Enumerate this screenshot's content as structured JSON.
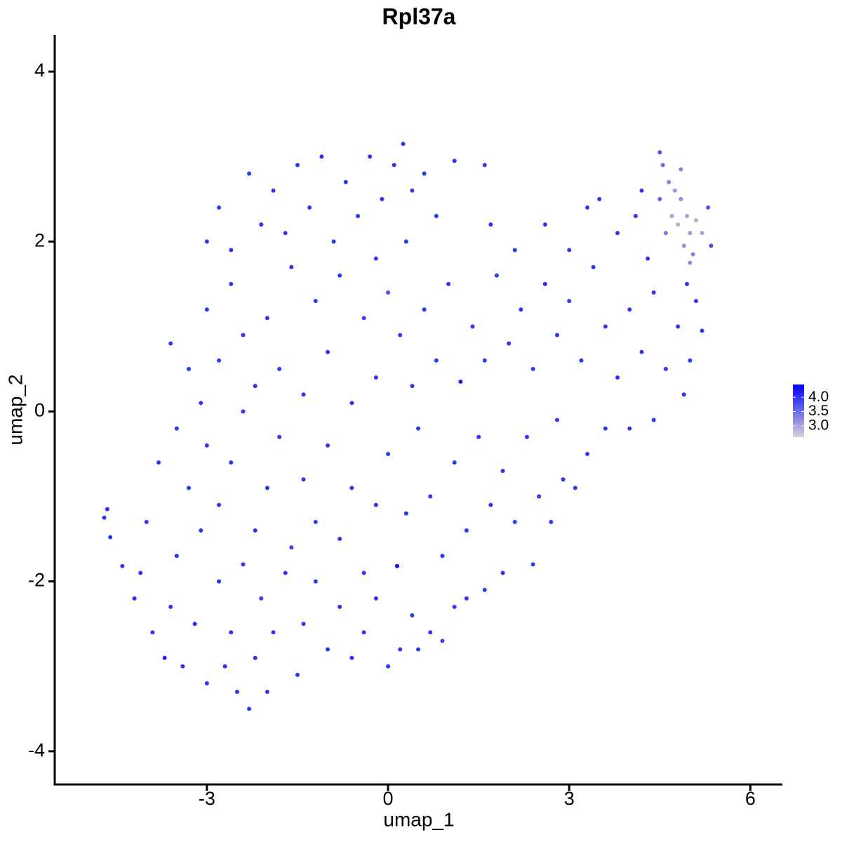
{
  "chart_data": {
    "type": "scatter",
    "title": "Rpl37a",
    "x_label": "umap_1",
    "y_label": "umap_2",
    "xlim": [
      -5.52,
      6.53
    ],
    "ylim": [
      -4.39,
      4.43
    ],
    "xticks": [
      -3,
      0,
      3,
      6
    ],
    "yticks": [
      -4,
      -2,
      0,
      2,
      4
    ],
    "color_low": "#d3d3d3",
    "color_high": "#0000ff",
    "color_lim": [
      2.6,
      4.45
    ],
    "color_ticks": [
      {
        "value": 3,
        "label": "3.0"
      },
      {
        "value": 3.5,
        "label": "3.5"
      },
      {
        "value": 4,
        "label": "4.0"
      }
    ],
    "x": [
      -4.7,
      -4.65,
      -4.6,
      -4.4,
      -4.2,
      -4.1,
      -3.9,
      -3.7,
      -3.6,
      -3.5,
      -3.4,
      -3.2,
      -3.1,
      -3.0,
      -2.8,
      -2.7,
      -2.6,
      -2.5,
      -2.4,
      -2.3,
      -2.2,
      -2.1,
      -2.0,
      -1.9,
      -1.7,
      -1.5,
      -1.4,
      -1.2,
      -1.0,
      -0.8,
      -0.6,
      -0.4,
      -0.2,
      0.0,
      0.2,
      0.4,
      0.5,
      0.7,
      0.9,
      1.1,
      1.3,
      1.6,
      1.9,
      2.4,
      -4.0,
      -3.8,
      -3.5,
      -3.3,
      -3.1,
      -3.0,
      -2.8,
      -2.6,
      -2.4,
      -2.2,
      -2.0,
      -1.8,
      -1.6,
      -1.4,
      -1.2,
      -1.0,
      -0.8,
      -0.6,
      -0.4,
      -0.2,
      0.0,
      0.15,
      0.3,
      0.5,
      0.7,
      0.9,
      1.1,
      1.3,
      1.5,
      1.7,
      1.9,
      2.1,
      2.3,
      2.5,
      2.7,
      2.9,
      3.1,
      3.3,
      3.6,
      4.0,
      4.4,
      2.8,
      -3.6,
      -3.3,
      -3.0,
      -2.8,
      -2.6,
      -2.4,
      -2.2,
      -2.0,
      -1.8,
      -1.6,
      -1.4,
      -1.2,
      -1.0,
      -0.8,
      -0.6,
      -0.4,
      -0.2,
      0.0,
      0.2,
      0.4,
      0.6,
      0.8,
      1.0,
      1.2,
      1.4,
      1.6,
      1.8,
      2.0,
      2.2,
      2.4,
      2.6,
      2.8,
      3.0,
      3.2,
      3.4,
      3.6,
      3.8,
      4.0,
      4.2,
      4.4,
      4.6,
      4.8,
      5.0,
      5.2,
      4.9,
      -3.0,
      -2.8,
      -2.6,
      -2.3,
      -2.1,
      -1.9,
      -1.7,
      -1.5,
      -1.3,
      -1.1,
      -0.9,
      -0.7,
      -0.5,
      -0.3,
      -0.1,
      0.1,
      0.25,
      0.4,
      0.6,
      0.8,
      1.1,
      1.6,
      0.3,
      -0.2,
      1.7,
      2.1,
      2.6,
      3.0,
      3.3,
      3.5,
      3.8,
      4.1,
      4.3,
      4.2,
      4.5,
      4.5,
      4.55,
      4.65,
      4.75,
      4.85,
      4.7,
      4.8,
      4.95,
      5.0,
      4.9,
      5.1,
      5.05,
      4.6,
      4.85,
      5.2,
      5.0,
      5.3,
      5.35,
      4.95,
      5.1
    ],
    "y": [
      -1.25,
      -1.15,
      -1.48,
      -1.82,
      -2.2,
      -1.9,
      -2.6,
      -2.9,
      -2.3,
      -1.7,
      -3.0,
      -2.5,
      -1.4,
      -3.2,
      -2.0,
      -3.0,
      -2.6,
      -3.3,
      -1.8,
      -3.5,
      -2.9,
      -2.2,
      -3.3,
      -2.6,
      -1.9,
      -3.1,
      -2.5,
      -2.0,
      -2.8,
      -2.3,
      -2.9,
      -2.6,
      -2.2,
      -3.0,
      -2.8,
      -2.4,
      -2.8,
      -2.6,
      -2.7,
      -2.3,
      -2.2,
      -2.1,
      -1.9,
      -1.8,
      -1.3,
      -0.6,
      -0.2,
      -0.9,
      0.1,
      -0.4,
      -1.1,
      -0.6,
      0.0,
      -1.4,
      -0.9,
      -0.3,
      -1.6,
      -0.8,
      -1.3,
      -0.4,
      -1.5,
      -0.9,
      -1.9,
      -1.1,
      -0.5,
      -1.82,
      -1.2,
      -0.2,
      -1.0,
      -1.7,
      -0.6,
      -1.4,
      -0.3,
      -1.1,
      -0.7,
      -1.3,
      -0.3,
      -1.0,
      -1.3,
      -0.8,
      -0.9,
      -0.5,
      -0.2,
      -0.2,
      -0.1,
      -0.1,
      0.8,
      0.5,
      1.2,
      0.6,
      1.5,
      0.9,
      0.3,
      1.1,
      0.5,
      1.7,
      0.2,
      1.3,
      0.7,
      1.6,
      0.1,
      1.1,
      0.4,
      1.4,
      0.9,
      0.3,
      1.2,
      0.6,
      1.5,
      0.35,
      1.0,
      0.6,
      1.6,
      0.8,
      1.2,
      0.5,
      1.5,
      0.9,
      1.3,
      0.6,
      1.7,
      1.0,
      0.4,
      1.2,
      0.7,
      1.4,
      0.5,
      1.0,
      0.6,
      0.95,
      0.2,
      2.0,
      2.4,
      1.9,
      2.8,
      2.2,
      2.6,
      2.1,
      2.9,
      2.4,
      3.0,
      2.0,
      2.7,
      2.3,
      3.0,
      2.5,
      2.9,
      3.15,
      2.6,
      2.8,
      2.3,
      2.95,
      2.9,
      2.0,
      1.8,
      2.2,
      1.9,
      2.2,
      1.9,
      2.4,
      2.5,
      2.1,
      2.3,
      1.8,
      2.6,
      3.05,
      2.5,
      2.9,
      2.7,
      2.6,
      2.5,
      2.3,
      2.2,
      2.3,
      2.1,
      1.95,
      2.25,
      1.85,
      2.1,
      2.85,
      2.1,
      1.75,
      2.4,
      1.95,
      1.5,
      1.3
    ],
    "color_values": [
      4.0,
      4.0,
      4.0,
      4.0,
      4.0,
      4.0,
      4.0,
      4.1,
      4.0,
      4.0,
      4.0,
      4.1,
      4.0,
      4.0,
      4.1,
      4.0,
      4.0,
      4.0,
      4.0,
      4.0,
      4.0,
      3.9,
      4.0,
      4.0,
      4.0,
      4.0,
      4.0,
      4.0,
      4.0,
      4.0,
      4.0,
      4.0,
      4.0,
      4.0,
      4.0,
      4.0,
      4.0,
      4.0,
      3.9,
      4.0,
      4.0,
      4.0,
      4.0,
      4.0,
      4.0,
      4.0,
      4.0,
      4.0,
      4.0,
      4.0,
      4.0,
      4.0,
      4.0,
      4.0,
      4.0,
      4.0,
      3.9,
      4.0,
      4.0,
      4.0,
      4.0,
      4.0,
      4.0,
      4.0,
      4.0,
      4.3,
      4.0,
      4.0,
      4.0,
      4.0,
      4.0,
      4.0,
      4.0,
      4.0,
      4.0,
      4.0,
      4.0,
      4.0,
      4.0,
      4.0,
      4.0,
      4.0,
      4.0,
      4.0,
      4.0,
      4.0,
      4.0,
      4.0,
      4.0,
      4.0,
      4.0,
      4.0,
      4.0,
      4.0,
      4.0,
      4.0,
      4.0,
      4.0,
      4.0,
      4.0,
      4.0,
      3.9,
      4.0,
      3.8,
      4.0,
      4.0,
      4.0,
      4.0,
      4.0,
      4.2,
      4.0,
      4.0,
      4.0,
      4.0,
      4.0,
      4.0,
      4.0,
      4.0,
      4.0,
      4.0,
      4.0,
      4.0,
      4.0,
      4.0,
      4.0,
      4.0,
      4.0,
      4.0,
      4.0,
      4.0,
      4.0,
      4.0,
      4.0,
      4.0,
      4.0,
      4.0,
      4.0,
      4.0,
      4.0,
      4.0,
      4.0,
      4.0,
      4.0,
      4.0,
      4.0,
      4.0,
      4.0,
      4.0,
      4.0,
      4.0,
      4.0,
      4.0,
      4.0,
      4.0,
      4.0,
      4.0,
      4.0,
      4.0,
      4.0,
      4.0,
      4.0,
      4.0,
      4.0,
      4.0,
      4.0,
      3.7,
      3.6,
      3.5,
      3.3,
      3.1,
      3.2,
      3.0,
      2.9,
      3.0,
      3.1,
      3.2,
      2.9,
      3.3,
      3.4,
      3.3,
      3.0,
      3.2,
      3.8,
      3.8,
      4.0,
      4.0
    ]
  }
}
